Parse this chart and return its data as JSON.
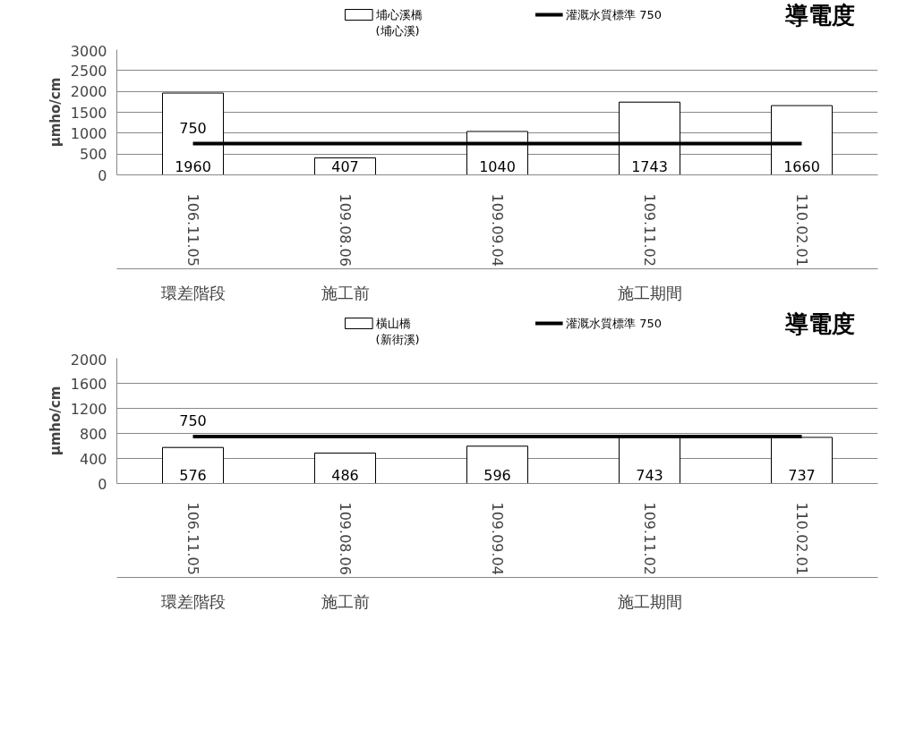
{
  "chart_data": [
    {
      "type": "bar",
      "title": "導電度",
      "ylabel": "μmho/cm",
      "categories": [
        "106.11.05",
        "109.08.06",
        "109.09.04",
        "109.11.02",
        "110.02.01"
      ],
      "series": [
        {
          "name": "埔心溪橋\n(埔心溪)",
          "color": "#000000",
          "values": [
            1960,
            407,
            1040,
            1743,
            1660
          ],
          "value_labels": [
            "1960",
            "407",
            "1040",
            "1743",
            "1660"
          ]
        },
        {
          "type": "line",
          "name": "灌溉水質標準 750",
          "color": "#000000",
          "values": [
            750,
            750,
            750,
            750,
            750
          ],
          "value_labels": [
            "750",
            null,
            null,
            null,
            null
          ]
        }
      ],
      "ylim": [
        0,
        3000
      ],
      "yticks": [
        0,
        500,
        1000,
        1500,
        2000,
        2500,
        3000
      ],
      "grid": "y",
      "legend": "top",
      "annotations": [
        "環差階段",
        "施工前",
        "施工期間"
      ]
    },
    {
      "type": "bar",
      "title": "導電度",
      "ylabel": "μmho/cm",
      "categories": [
        "106.11.05",
        "109.08.06",
        "109.09.04",
        "109.11.02",
        "110.02.01"
      ],
      "series": [
        {
          "name": "橫山橋\n(新街溪)",
          "color": "#000000",
          "values": [
            576,
            486,
            596,
            743,
            737
          ],
          "value_labels": [
            "576",
            "486",
            "596",
            "743",
            "737"
          ]
        },
        {
          "type": "line",
          "name": "灌溉水質標準 750",
          "color": "#000000",
          "values": [
            750,
            750,
            750,
            750,
            750
          ],
          "value_labels": [
            "750",
            null,
            null,
            null,
            null
          ]
        }
      ],
      "ylim": [
        0,
        2000
      ],
      "yticks": [
        0,
        400,
        800,
        1200,
        1600,
        2000
      ],
      "grid": "y",
      "legend": "top",
      "annotations": [
        "環差階段",
        "施工前",
        "施工期間"
      ]
    }
  ]
}
